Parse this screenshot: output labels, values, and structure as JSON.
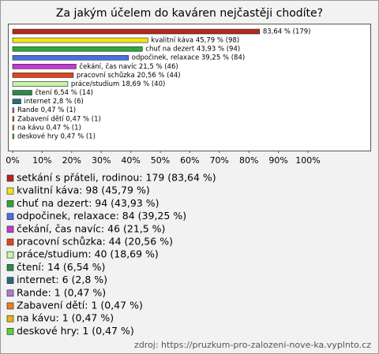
{
  "chart_data": {
    "type": "bar",
    "orientation": "horizontal",
    "title": "Za jakým účelem do kaváren nejčastěji chodíte?",
    "categories": [
      "setkání s přáteli, rodinou",
      "kvalitní káva",
      "chuť na dezert",
      "odpočinek, relaxace",
      "čekání, čas navíc",
      "pracovní schůzka",
      "práce/studium",
      "čtení",
      "internet",
      "Rande",
      "Zabavení dětí",
      "na kávu",
      "deskové hry"
    ],
    "values": [
      83.64,
      45.79,
      43.93,
      39.25,
      21.5,
      20.56,
      18.69,
      6.54,
      2.8,
      0.47,
      0.47,
      0.47,
      0.47
    ],
    "value_labels": [
      "83,64 % (179)",
      "kvalitní káva 45,79 % (98)",
      "chuť na dezert 43,93 % (94)",
      "odpočinek, relaxace 39,25 % (84)",
      "čekání, čas navíc 21,5 % (46)",
      "pracovní schůzka 20,56 % (44)",
      "práce/studium 18,69 % (40)",
      "čtení 6,54 % (14)",
      "internet 2,8 % (6)",
      "Rande 0,47 % (1)",
      "Zabavení dětí 0,47 % (1)",
      "na kávu 0,47 % (1)",
      "deskové hry 0,47 % (1)"
    ],
    "legend_labels": [
      "setkání s přáteli, rodinou: 179 (83,64 %)",
      "kvalitní káva: 98 (45,79 %)",
      "chuť na dezert: 94 (43,93 %)",
      "odpočinek, relaxace: 84 (39,25 %)",
      "čekání, čas navíc: 46 (21,5 %)",
      "pracovní schůzka: 44 (20,56 %)",
      "práce/studium: 40 (18,69 %)",
      "čtení: 14 (6,54 %)",
      "internet: 6 (2,8 %)",
      "Rande: 1 (0,47 %)",
      "Zabavení dětí: 1 (0,47 %)",
      "na kávu: 1 (0,47 %)",
      "deskové hry: 1 (0,47 %)"
    ],
    "colors": [
      "#b5281c",
      "#f2e41c",
      "#2ea83a",
      "#4a6fe0",
      "#c03ccf",
      "#e0461e",
      "#c8f5a8",
      "#2b8a4e",
      "#2a6a80",
      "#b47ad0",
      "#e8801e",
      "#e8b020",
      "#5ad040"
    ],
    "xlim": [
      0,
      100
    ],
    "xticks": [
      {
        "value": 0,
        "label": "0%"
      },
      {
        "value": 10,
        "label": "10%"
      },
      {
        "value": 20,
        "label": "20%"
      },
      {
        "value": 30,
        "label": "30%"
      },
      {
        "value": 40,
        "label": "40%"
      },
      {
        "value": 50,
        "label": "50%"
      },
      {
        "value": 60,
        "label": "60%"
      },
      {
        "value": 70,
        "label": "70%"
      },
      {
        "value": 80,
        "label": "80%"
      },
      {
        "value": 90,
        "label": "90%"
      },
      {
        "value": 100,
        "label": "100%"
      }
    ],
    "source": "zdroj: https://pruzkum-pro-zalozeni-nove-ka.vyplnto.cz"
  }
}
